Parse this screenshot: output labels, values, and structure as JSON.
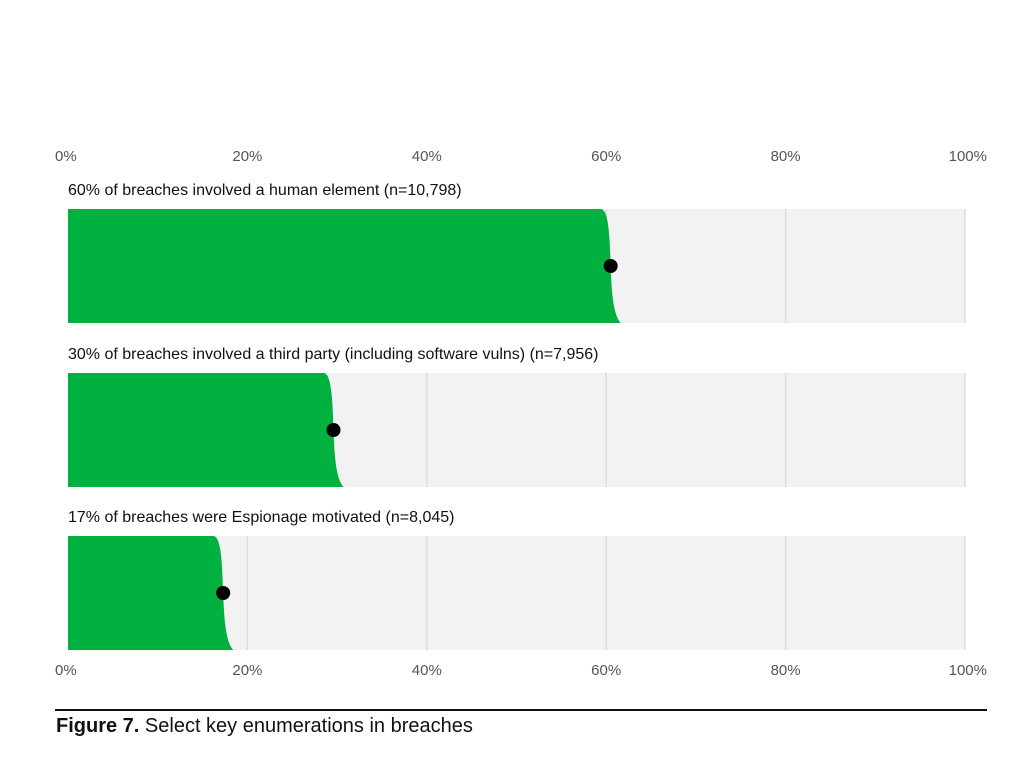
{
  "chart_data": {
    "type": "bar",
    "orientation": "horizontal",
    "xlim": [
      0,
      100
    ],
    "ticks": [
      "0%",
      "20%",
      "40%",
      "60%",
      "80%",
      "100%"
    ],
    "grid": true,
    "rows": [
      {
        "label": "60% of breaches involved a human element (n=10,798)",
        "value": 60.5
      },
      {
        "label": "30% of breaches involved a third party (including software vulns) (n=7,956)",
        "value": 29.6
      },
      {
        "label": "17% of breaches were Espionage motivated (n=8,045)",
        "value": 17.3
      }
    ],
    "colors": {
      "fill": "#00b140",
      "track": "#f2f2f2",
      "grid": "#dcdcdc",
      "point": "#000000"
    }
  },
  "caption": {
    "figure_number": "Figure 7.",
    "text": " Select key enumerations in breaches"
  }
}
